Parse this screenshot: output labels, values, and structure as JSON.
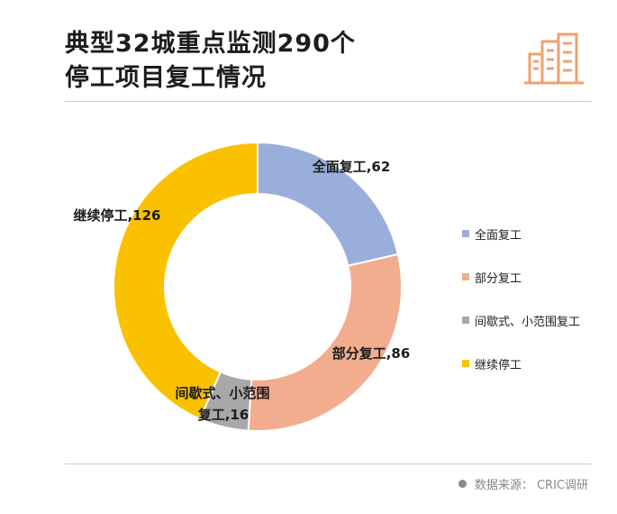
{
  "header": {
    "title_line1": "典型32城重点监测290个",
    "title_line2": "停工项目复工情况",
    "logo_icon": "city-buildings-icon",
    "logo_color": "#F0A26E"
  },
  "chart_data": {
    "type": "pie",
    "donut": true,
    "title": "典型32城重点监测290个停工项目复工情况",
    "categories": [
      "全面复工",
      "部分复工",
      "间歇式、小范围复工",
      "继续停工"
    ],
    "values": [
      62,
      86,
      16,
      126
    ],
    "data_labels": [
      "全面复工,62",
      "部分复工,86",
      "间歇式、小范围复工,16",
      "继续停工,126"
    ],
    "colors": [
      "#9AAEDB",
      "#F2AC8E",
      "#A8A8A8",
      "#F9C100"
    ],
    "legend_position": "right"
  },
  "legend": {
    "items": [
      {
        "label": "全面复工",
        "color": "#9AAEDB"
      },
      {
        "label": "部分复工",
        "color": "#F2AC8E"
      },
      {
        "label": "间歇式、小范围复工",
        "color": "#A8A8A8"
      },
      {
        "label": "继续停工",
        "color": "#F9C100"
      }
    ]
  },
  "footer": {
    "source": "数据来源： CRIC调研"
  }
}
